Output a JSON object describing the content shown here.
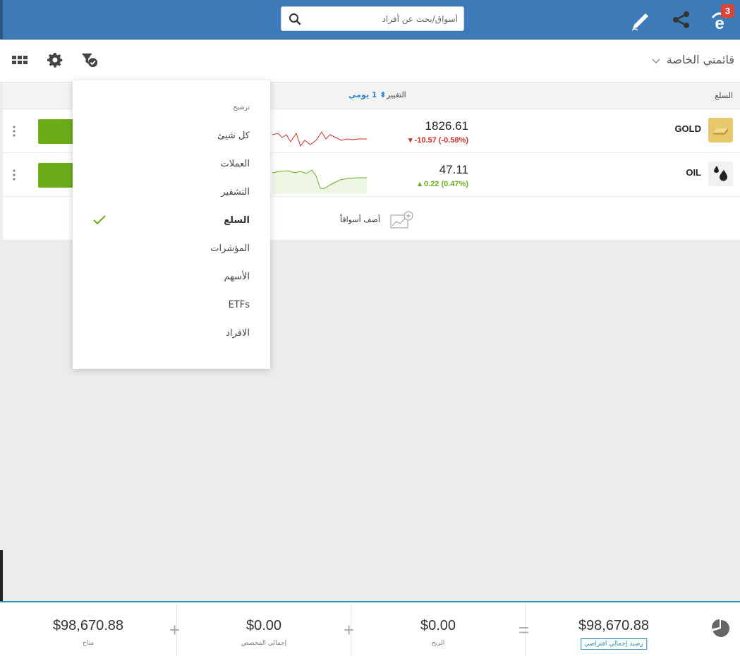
{
  "header": {
    "search_placeholder": "أسواق/بحث عن أفراد",
    "notification_count": "3",
    "icons": [
      "etoro-logo-icon",
      "share-icon",
      "edit-pen-icon",
      "search-icon"
    ]
  },
  "toolbar": {
    "list_title": "قائمتي الخاصة",
    "icons": [
      "chevron-down-icon",
      "filter-icon",
      "gear-icon",
      "grid-icon"
    ]
  },
  "table": {
    "col_name": "السلع",
    "col_change": "التغيير",
    "col_period": "1 يومي",
    "rows": [
      {
        "symbol": "GOLD",
        "price": "1826.61",
        "change": "-10.57 (-0.58%)",
        "direction": "down",
        "color": "#c9302c"
      },
      {
        "symbol": "OIL",
        "price": "47.11",
        "change": "0.22 (0.47%)",
        "direction": "up",
        "color": "#6bad19"
      }
    ],
    "add_markets": "أضف أسواقاً"
  },
  "filter_menu": {
    "title": "ترشيح",
    "items": [
      {
        "label": "كل شيئ"
      },
      {
        "label": "العملات"
      },
      {
        "label": "التشفير"
      },
      {
        "label": "السلع",
        "selected": true
      },
      {
        "label": "المؤشرات"
      },
      {
        "label": "الأسهم"
      },
      {
        "label": "ETFs"
      },
      {
        "label": "الافراد"
      }
    ]
  },
  "footer": {
    "available_value": "$98,670.88",
    "available_label": "متاح",
    "allocated_value": "$0.00",
    "allocated_label": "إجمالي المخصص",
    "profit_value": "$0.00",
    "profit_label": "الربح",
    "equity_value": "$98,670.88",
    "equity_label": "رصيد إجمالي افتراضي"
  },
  "colors": {
    "header_blue": "#3d7ab8",
    "trade_green": "#6bad19",
    "down_red": "#c9302c",
    "accent_blue": "#2a86d0"
  }
}
